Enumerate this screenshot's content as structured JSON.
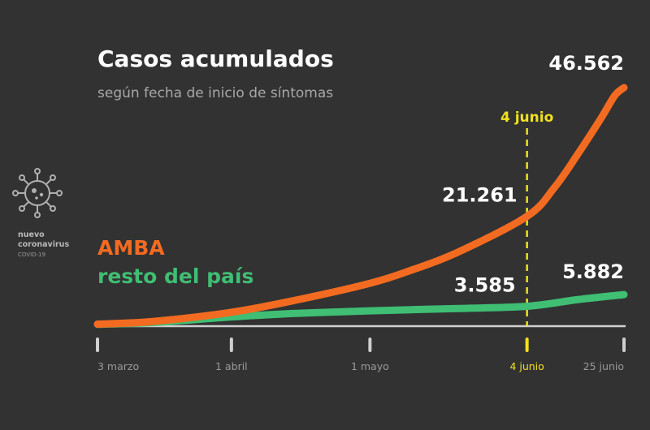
{
  "badge": {
    "icon": "coronavirus-icon",
    "line1": "nuevo",
    "line2": "coronavirus",
    "line3": "COVID-19"
  },
  "chart_data": {
    "type": "line",
    "title": "Casos acumulados",
    "subtitle": "según fecha de inicio de síntomas",
    "xlabel": "",
    "ylabel": "",
    "grid": false,
    "x_ticks": [
      "3 marzo",
      "1 abril",
      "1 mayo",
      "4 junio",
      "25 junio"
    ],
    "x_range": [
      "2020-03-03",
      "2020-06-25"
    ],
    "ylim": [
      0,
      46562
    ],
    "marker": {
      "date": "2020-06-04",
      "label": "4 junio",
      "color": "#f2e01f"
    },
    "series": [
      {
        "name": "AMBA",
        "color": "#f26b21",
        "x": [
          "2020-03-03",
          "2020-03-15",
          "2020-04-01",
          "2020-04-15",
          "2020-05-01",
          "2020-05-10",
          "2020-05-20",
          "2020-06-04",
          "2020-06-10",
          "2020-06-15",
          "2020-06-20",
          "2020-06-23",
          "2020-06-25"
        ],
        "values": [
          80,
          600,
          2400,
          4800,
          8100,
          10700,
          14200,
          21261,
          27000,
          33500,
          40500,
          45000,
          46562
        ]
      },
      {
        "name": "resto del país",
        "color": "#3fbe74",
        "x": [
          "2020-03-03",
          "2020-03-15",
          "2020-04-01",
          "2020-04-15",
          "2020-05-01",
          "2020-05-20",
          "2020-06-04",
          "2020-06-15",
          "2020-06-25"
        ],
        "values": [
          40,
          400,
          1500,
          2200,
          2700,
          3150,
          3585,
          4900,
          5882
        ]
      }
    ],
    "data_labels": [
      {
        "series": "AMBA",
        "date": "2020-06-04",
        "text": "21.261"
      },
      {
        "series": "AMBA",
        "date": "2020-06-25",
        "text": "46.562"
      },
      {
        "series": "resto del país",
        "date": "2020-06-04",
        "text": "3.585"
      },
      {
        "series": "resto del país",
        "date": "2020-06-25",
        "text": "5.882"
      }
    ]
  }
}
